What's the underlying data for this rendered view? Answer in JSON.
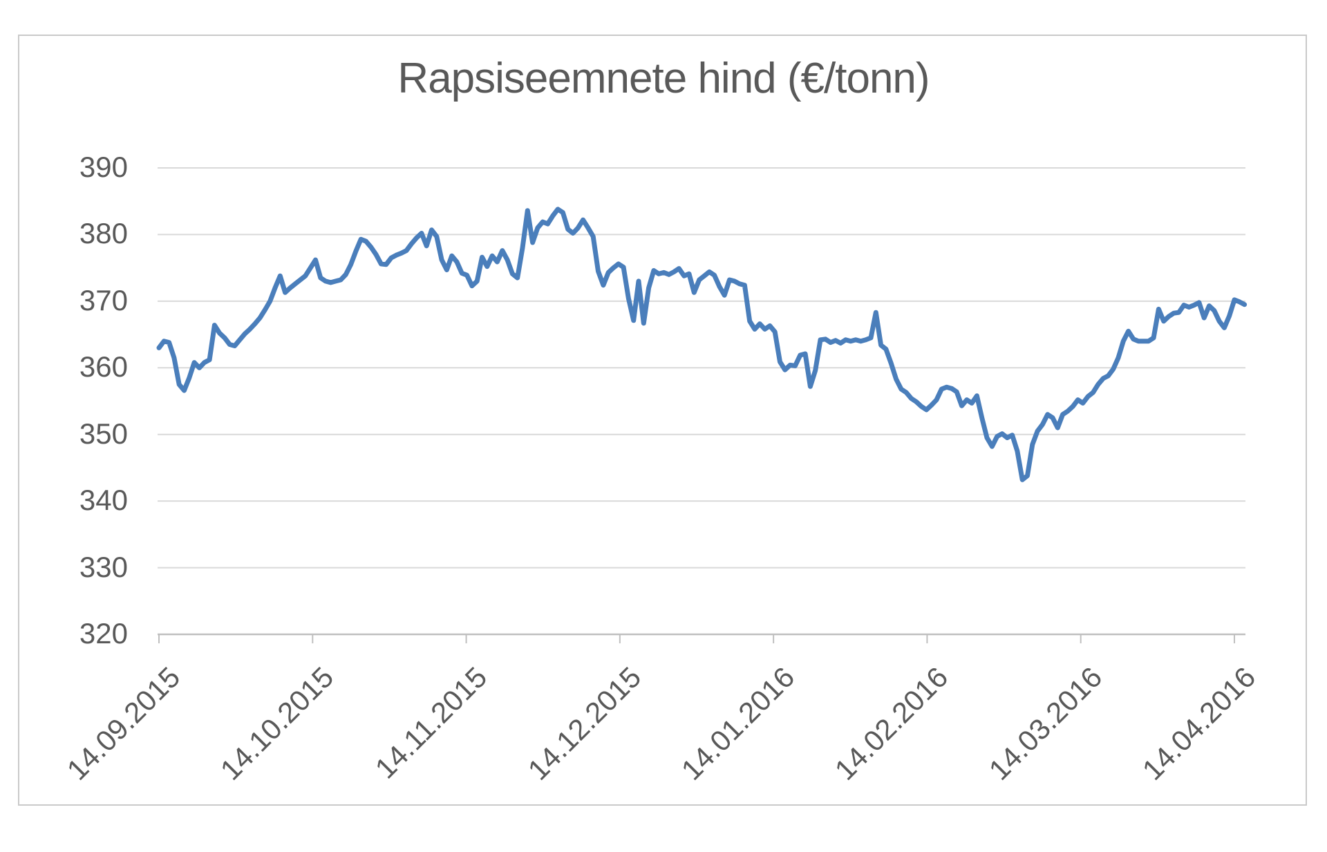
{
  "chart": {
    "title": "Rapsiseemnete hind (€/tonn)"
  },
  "chart_data": {
    "type": "line",
    "title": "Rapsiseemnete hind (€/tonn)",
    "xlabel": "",
    "ylabel": "",
    "legend": "none",
    "grid": "horizontal",
    "ylim": [
      320,
      390
    ],
    "y_ticks": [
      390,
      380,
      370,
      360,
      350,
      340,
      330,
      320
    ],
    "x_tick_labels": [
      "14.09.2015",
      "14.10.2015",
      "14.11.2015",
      "14.12.2015",
      "14.01.2016",
      "14.02.2016",
      "14.03.2016",
      "14.04.2016"
    ],
    "x_axis_type": "date",
    "x_start_date": "14.09.2015",
    "x_end_date": "14.04.2016",
    "x_day_span_between_first_and_last_tick": 213,
    "colors": {
      "line": "#4a7ebb",
      "labels": "#595959",
      "title": "#595959",
      "gridline": "#d9d9d9",
      "axis_line": "#bfbfbf",
      "frame_border": "#c9c9c9",
      "background": "#ffffff"
    },
    "series": [
      {
        "name": "Rapsiseemnete hind (€/tonn)",
        "x_unit": "days_since_14.09.2015",
        "points": [
          [
            0,
            363
          ],
          [
            1,
            364
          ],
          [
            2,
            363.8
          ],
          [
            3,
            361.5
          ],
          [
            4,
            357.5
          ],
          [
            5,
            356.6
          ],
          [
            6,
            358.5
          ],
          [
            7,
            360.8
          ],
          [
            8,
            360
          ],
          [
            9,
            360.8
          ],
          [
            10,
            361.2
          ],
          [
            11,
            366.4
          ],
          [
            12,
            365.2
          ],
          [
            13,
            364.5
          ],
          [
            14,
            363.5
          ],
          [
            15,
            363.3
          ],
          [
            16,
            364.2
          ],
          [
            17,
            365.1
          ],
          [
            18,
            365.8
          ],
          [
            19,
            366.6
          ],
          [
            20,
            367.5
          ],
          [
            21,
            368.7
          ],
          [
            22,
            370
          ],
          [
            23,
            372
          ],
          [
            24,
            373.8
          ],
          [
            25,
            371.3
          ],
          [
            26,
            372
          ],
          [
            27,
            372.6
          ],
          [
            28,
            373.2
          ],
          [
            29,
            373.8
          ],
          [
            30,
            375
          ],
          [
            31,
            376.2
          ],
          [
            32,
            373.5
          ],
          [
            33,
            373
          ],
          [
            34,
            372.8
          ],
          [
            35,
            373
          ],
          [
            36,
            373.2
          ],
          [
            37,
            374
          ],
          [
            38,
            375.5
          ],
          [
            39,
            377.5
          ],
          [
            40,
            379.3
          ],
          [
            41,
            379
          ],
          [
            42,
            378.1
          ],
          [
            43,
            377
          ],
          [
            44,
            375.6
          ],
          [
            45,
            375.5
          ],
          [
            46,
            376.5
          ],
          [
            47,
            376.9
          ],
          [
            48,
            377.2
          ],
          [
            49,
            377.6
          ],
          [
            50,
            378.6
          ],
          [
            51,
            379.5
          ],
          [
            52,
            380.2
          ],
          [
            53,
            378.3
          ],
          [
            54,
            380.7
          ],
          [
            55,
            379.7
          ],
          [
            56,
            376.2
          ],
          [
            57,
            374.7
          ],
          [
            58,
            376.8
          ],
          [
            59,
            375.9
          ],
          [
            60,
            374.2
          ],
          [
            61,
            373.9
          ],
          [
            62,
            372.3
          ],
          [
            63,
            373
          ],
          [
            64,
            376.6
          ],
          [
            65,
            375.2
          ],
          [
            66,
            376.8
          ],
          [
            67,
            375.9
          ],
          [
            68,
            377.6
          ],
          [
            69,
            376.2
          ],
          [
            70,
            374.1
          ],
          [
            71,
            373.5
          ],
          [
            72,
            378
          ],
          [
            73,
            383.6
          ],
          [
            74,
            378.8
          ],
          [
            75,
            381
          ],
          [
            76,
            381.9
          ],
          [
            77,
            381.6
          ],
          [
            78,
            382.8
          ],
          [
            79,
            383.8
          ],
          [
            80,
            383.3
          ],
          [
            81,
            380.8
          ],
          [
            82,
            380.2
          ],
          [
            83,
            381
          ],
          [
            84,
            382.2
          ],
          [
            85,
            381
          ],
          [
            86,
            379.7
          ],
          [
            87,
            374.5
          ],
          [
            88,
            372.4
          ],
          [
            89,
            374.3
          ],
          [
            90,
            375
          ],
          [
            91,
            375.6
          ],
          [
            92,
            375.1
          ],
          [
            93,
            370.4
          ],
          [
            94,
            367.1
          ],
          [
            95,
            373
          ],
          [
            96,
            366.7
          ],
          [
            97,
            372
          ],
          [
            98,
            374.6
          ],
          [
            99,
            374.1
          ],
          [
            100,
            374.3
          ],
          [
            101,
            374
          ],
          [
            102,
            374.4
          ],
          [
            103,
            374.9
          ],
          [
            104,
            373.8
          ],
          [
            105,
            374.1
          ],
          [
            106,
            371.3
          ],
          [
            107,
            373.2
          ],
          [
            108,
            373.8
          ],
          [
            109,
            374.4
          ],
          [
            110,
            373.9
          ],
          [
            111,
            372.2
          ],
          [
            112,
            370.9
          ],
          [
            113,
            373.2
          ],
          [
            114,
            373
          ],
          [
            115,
            372.6
          ],
          [
            116,
            372.4
          ],
          [
            117,
            367
          ],
          [
            118,
            365.8
          ],
          [
            119,
            366.6
          ],
          [
            120,
            365.8
          ],
          [
            121,
            366.3
          ],
          [
            122,
            365.4
          ],
          [
            123,
            360.9
          ],
          [
            124,
            359.7
          ],
          [
            125,
            360.4
          ],
          [
            126,
            360.3
          ],
          [
            127,
            361.9
          ],
          [
            128,
            362.1
          ],
          [
            129,
            357.2
          ],
          [
            130,
            359.6
          ],
          [
            131,
            364.2
          ],
          [
            132,
            364.3
          ],
          [
            133,
            363.8
          ],
          [
            134,
            364.1
          ],
          [
            135,
            363.7
          ],
          [
            136,
            364.2
          ],
          [
            137,
            364
          ],
          [
            138,
            364.2
          ],
          [
            139,
            364
          ],
          [
            140,
            364.2
          ],
          [
            141,
            364.5
          ],
          [
            142,
            368.3
          ],
          [
            143,
            363.4
          ],
          [
            144,
            362.8
          ],
          [
            145,
            360.7
          ],
          [
            146,
            358.3
          ],
          [
            147,
            356.8
          ],
          [
            148,
            356.3
          ],
          [
            149,
            355.4
          ],
          [
            150,
            354.9
          ],
          [
            151,
            354.2
          ],
          [
            152,
            353.7
          ],
          [
            153,
            354.4
          ],
          [
            154,
            355.2
          ],
          [
            155,
            356.8
          ],
          [
            156,
            357.1
          ],
          [
            157,
            356.9
          ],
          [
            158,
            356.4
          ],
          [
            159,
            354.3
          ],
          [
            160,
            355.2
          ],
          [
            161,
            354.7
          ],
          [
            162,
            355.8
          ],
          [
            163,
            352.5
          ],
          [
            164,
            349.5
          ],
          [
            165,
            348.2
          ],
          [
            166,
            349.7
          ],
          [
            167,
            350.1
          ],
          [
            168,
            349.5
          ],
          [
            169,
            349.9
          ],
          [
            170,
            347.5
          ],
          [
            171,
            343.2
          ],
          [
            172,
            343.8
          ],
          [
            173,
            348.5
          ],
          [
            174,
            350.5
          ],
          [
            175,
            351.5
          ],
          [
            176,
            353
          ],
          [
            177,
            352.5
          ],
          [
            178,
            351
          ],
          [
            179,
            353
          ],
          [
            180,
            353.5
          ],
          [
            181,
            354.2
          ],
          [
            182,
            355.2
          ],
          [
            183,
            354.7
          ],
          [
            184,
            355.7
          ],
          [
            185,
            356.3
          ],
          [
            186,
            357.5
          ],
          [
            187,
            358.4
          ],
          [
            188,
            358.8
          ],
          [
            189,
            359.8
          ],
          [
            190,
            361.5
          ],
          [
            191,
            364
          ],
          [
            192,
            365.5
          ],
          [
            193,
            364.3
          ],
          [
            194,
            364
          ],
          [
            195,
            364
          ],
          [
            196,
            364
          ],
          [
            197,
            364.5
          ],
          [
            198,
            368.8
          ],
          [
            199,
            367
          ],
          [
            200,
            367.7
          ],
          [
            201,
            368.2
          ],
          [
            202,
            368.3
          ],
          [
            203,
            369.4
          ],
          [
            204,
            369.1
          ],
          [
            205,
            369.4
          ],
          [
            206,
            369.8
          ],
          [
            207,
            367.5
          ],
          [
            208,
            369.3
          ],
          [
            209,
            368.6
          ],
          [
            210,
            367
          ],
          [
            211,
            366
          ],
          [
            212,
            367.8
          ],
          [
            213,
            370.2
          ],
          [
            214,
            369.9
          ],
          [
            215,
            369.5
          ]
        ]
      }
    ]
  }
}
